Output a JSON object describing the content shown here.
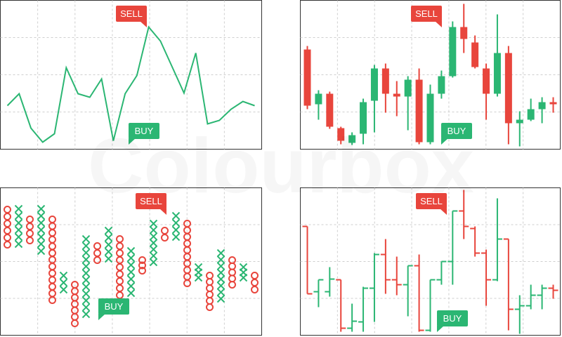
{
  "watermark": "Colourbox",
  "chart_data": [
    {
      "type": "line",
      "color": "#2bb673",
      "ylim": [
        0,
        212
      ],
      "annotations": [
        "SELL",
        "BUY"
      ],
      "annotation_colors": [
        "#e8453c",
        "#2bb673"
      ],
      "categories": [
        null,
        null,
        null,
        null,
        null,
        null,
        null,
        null,
        null,
        null,
        null,
        null,
        null,
        null,
        null,
        null,
        null,
        null,
        null,
        null,
        null,
        null
      ],
      "values": [
        62,
        79,
        30,
        10,
        22,
        116,
        79,
        74,
        100,
        12,
        79,
        105,
        174,
        154,
        117,
        80,
        137,
        36,
        41,
        57,
        68,
        62
      ]
    },
    {
      "type": "candlestick",
      "up_color": "#2bb673",
      "down_color": "#e8453c",
      "ylim": [
        0,
        212
      ],
      "annotations": [
        "SELL",
        "BUY"
      ],
      "annotation_colors": [
        "#e8453c",
        "#2bb673"
      ],
      "open": [
        142,
        64,
        79,
        30,
        9,
        22,
        69,
        115,
        79,
        75,
        99,
        10,
        79,
        104,
        174,
        152,
        115,
        79,
        137,
        37,
        42,
        57,
        67
      ],
      "high": [
        147,
        84,
        82,
        32,
        24,
        72,
        120,
        122,
        97,
        104,
        115,
        92,
        112,
        182,
        207,
        162,
        122,
        192,
        147,
        54,
        72,
        74,
        74
      ],
      "low": [
        57,
        42,
        29,
        7,
        6,
        7,
        24,
        52,
        47,
        27,
        7,
        7,
        72,
        102,
        137,
        115,
        42,
        75,
        7,
        4,
        40,
        37,
        52
      ],
      "close": [
        62,
        79,
        32,
        12,
        20,
        67,
        115,
        79,
        75,
        99,
        10,
        79,
        104,
        174,
        157,
        117,
        79,
        137,
        37,
        42,
        57,
        67,
        64
      ]
    },
    {
      "type": "point-and-figure",
      "x_color": "#2bb673",
      "o_color": "#e8453c",
      "ylim": [
        0,
        210
      ],
      "annotations": [
        "SELL",
        "BUY"
      ],
      "annotation_colors": [
        "#e8453c",
        "#2bb673"
      ],
      "columns": [
        {
          "kind": "O",
          "top": 179,
          "bottom": 129
        },
        {
          "kind": "X",
          "top": 180,
          "bottom": 130
        },
        {
          "kind": "O",
          "top": 165,
          "bottom": 135
        },
        {
          "kind": "X",
          "top": 180,
          "bottom": 120
        },
        {
          "kind": "O",
          "top": 165,
          "bottom": 50
        },
        {
          "kind": "X",
          "top": 85,
          "bottom": 65
        },
        {
          "kind": "O",
          "top": 72,
          "bottom": 17
        },
        {
          "kind": "X",
          "top": 137,
          "bottom": 30
        },
        {
          "kind": "O",
          "top": 127,
          "bottom": 107
        },
        {
          "kind": "X",
          "top": 149,
          "bottom": 109
        },
        {
          "kind": "O",
          "top": 137,
          "bottom": 57
        },
        {
          "kind": "X",
          "top": 120,
          "bottom": 60
        },
        {
          "kind": "O",
          "top": 107,
          "bottom": 92
        },
        {
          "kind": "X",
          "top": 159,
          "bottom": 104
        },
        {
          "kind": "O",
          "top": 149,
          "bottom": 139
        },
        {
          "kind": "X",
          "top": 170,
          "bottom": 140
        },
        {
          "kind": "O",
          "top": 159,
          "bottom": 74
        },
        {
          "kind": "X",
          "top": 97,
          "bottom": 82
        },
        {
          "kind": "O",
          "top": 85,
          "bottom": 40
        },
        {
          "kind": "X",
          "top": 117,
          "bottom": 52
        },
        {
          "kind": "O",
          "top": 107,
          "bottom": 72
        },
        {
          "kind": "X",
          "top": 97,
          "bottom": 82
        },
        {
          "kind": "O",
          "top": 85,
          "bottom": 65
        }
      ]
    },
    {
      "type": "ohlc",
      "up_color": "#2bb673",
      "down_color": "#e8453c",
      "ylim": [
        0,
        210
      ],
      "annotations": [
        "SELL",
        "BUY"
      ],
      "annotation_colors": [
        "#e8453c",
        "#2bb673"
      ],
      "open": [
        155,
        62,
        62,
        79,
        10,
        19,
        67,
        115,
        79,
        72,
        99,
        7,
        79,
        105,
        177,
        152,
        117,
        79,
        137,
        37,
        42,
        57,
        67
      ],
      "high": [
        155,
        79,
        97,
        79,
        45,
        69,
        117,
        137,
        112,
        99,
        115,
        79,
        105,
        177,
        207,
        155,
        122,
        195,
        137,
        57,
        72,
        72,
        72
      ],
      "low": [
        59,
        40,
        55,
        5,
        5,
        5,
        19,
        59,
        57,
        27,
        5,
        5,
        72,
        72,
        137,
        112,
        42,
        77,
        7,
        2,
        37,
        37,
        52
      ],
      "close": [
        59,
        79,
        80,
        10,
        20,
        67,
        115,
        79,
        72,
        99,
        7,
        79,
        105,
        177,
        155,
        117,
        79,
        137,
        37,
        42,
        57,
        67,
        64
      ]
    }
  ]
}
